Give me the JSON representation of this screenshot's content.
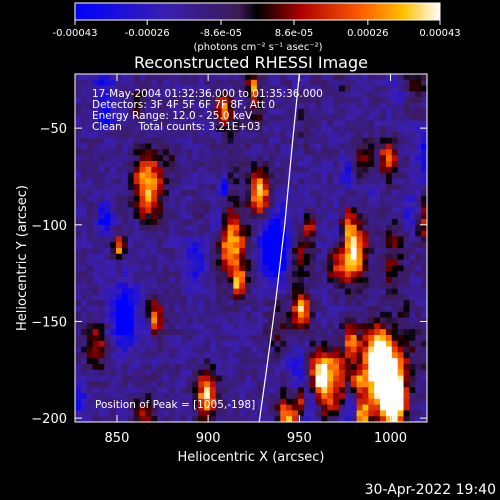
{
  "chart_data": {
    "type": "heatmap",
    "title": "Reconstructed RHESSI Image",
    "xlabel": "Heliocentric X (arcsec)",
    "ylabel": "Heliocentric Y (arcsec)",
    "xlim": [
      827,
      1020
    ],
    "ylim": [
      -202,
      -22
    ],
    "x_ticks": [
      850,
      900,
      950,
      1000
    ],
    "y_ticks": [
      -50,
      -100,
      -150,
      -200
    ],
    "colorbar": {
      "label": "(photons cm⁻² s⁻¹ asec⁻²)",
      "ticks": [
        "-0.00043",
        "-0.00026",
        "-8.6e-05",
        "8.6e-05",
        "0.00026",
        "0.00043"
      ],
      "range": [
        -0.00043,
        0.00043
      ]
    },
    "info_lines": [
      "17-May-2004 01:32:36.000 to 01:35:36.000",
      "Detectors: 3F 4F 5F 6F 7F 8F, Att 0",
      "Energy Range: 12.0 - 25.0 keV",
      "Clean     Total counts: 3.21E+03"
    ],
    "peak_label": "Position of Peak = [1005,-198]",
    "limb_curve": [
      [
        928,
        -202
      ],
      [
        932,
        -175
      ],
      [
        937,
        -140
      ],
      [
        942,
        -100
      ],
      [
        946,
        -60
      ],
      [
        950,
        -22
      ]
    ]
  },
  "footer": {
    "timestamp": "30-Apr-2022 19:40"
  }
}
